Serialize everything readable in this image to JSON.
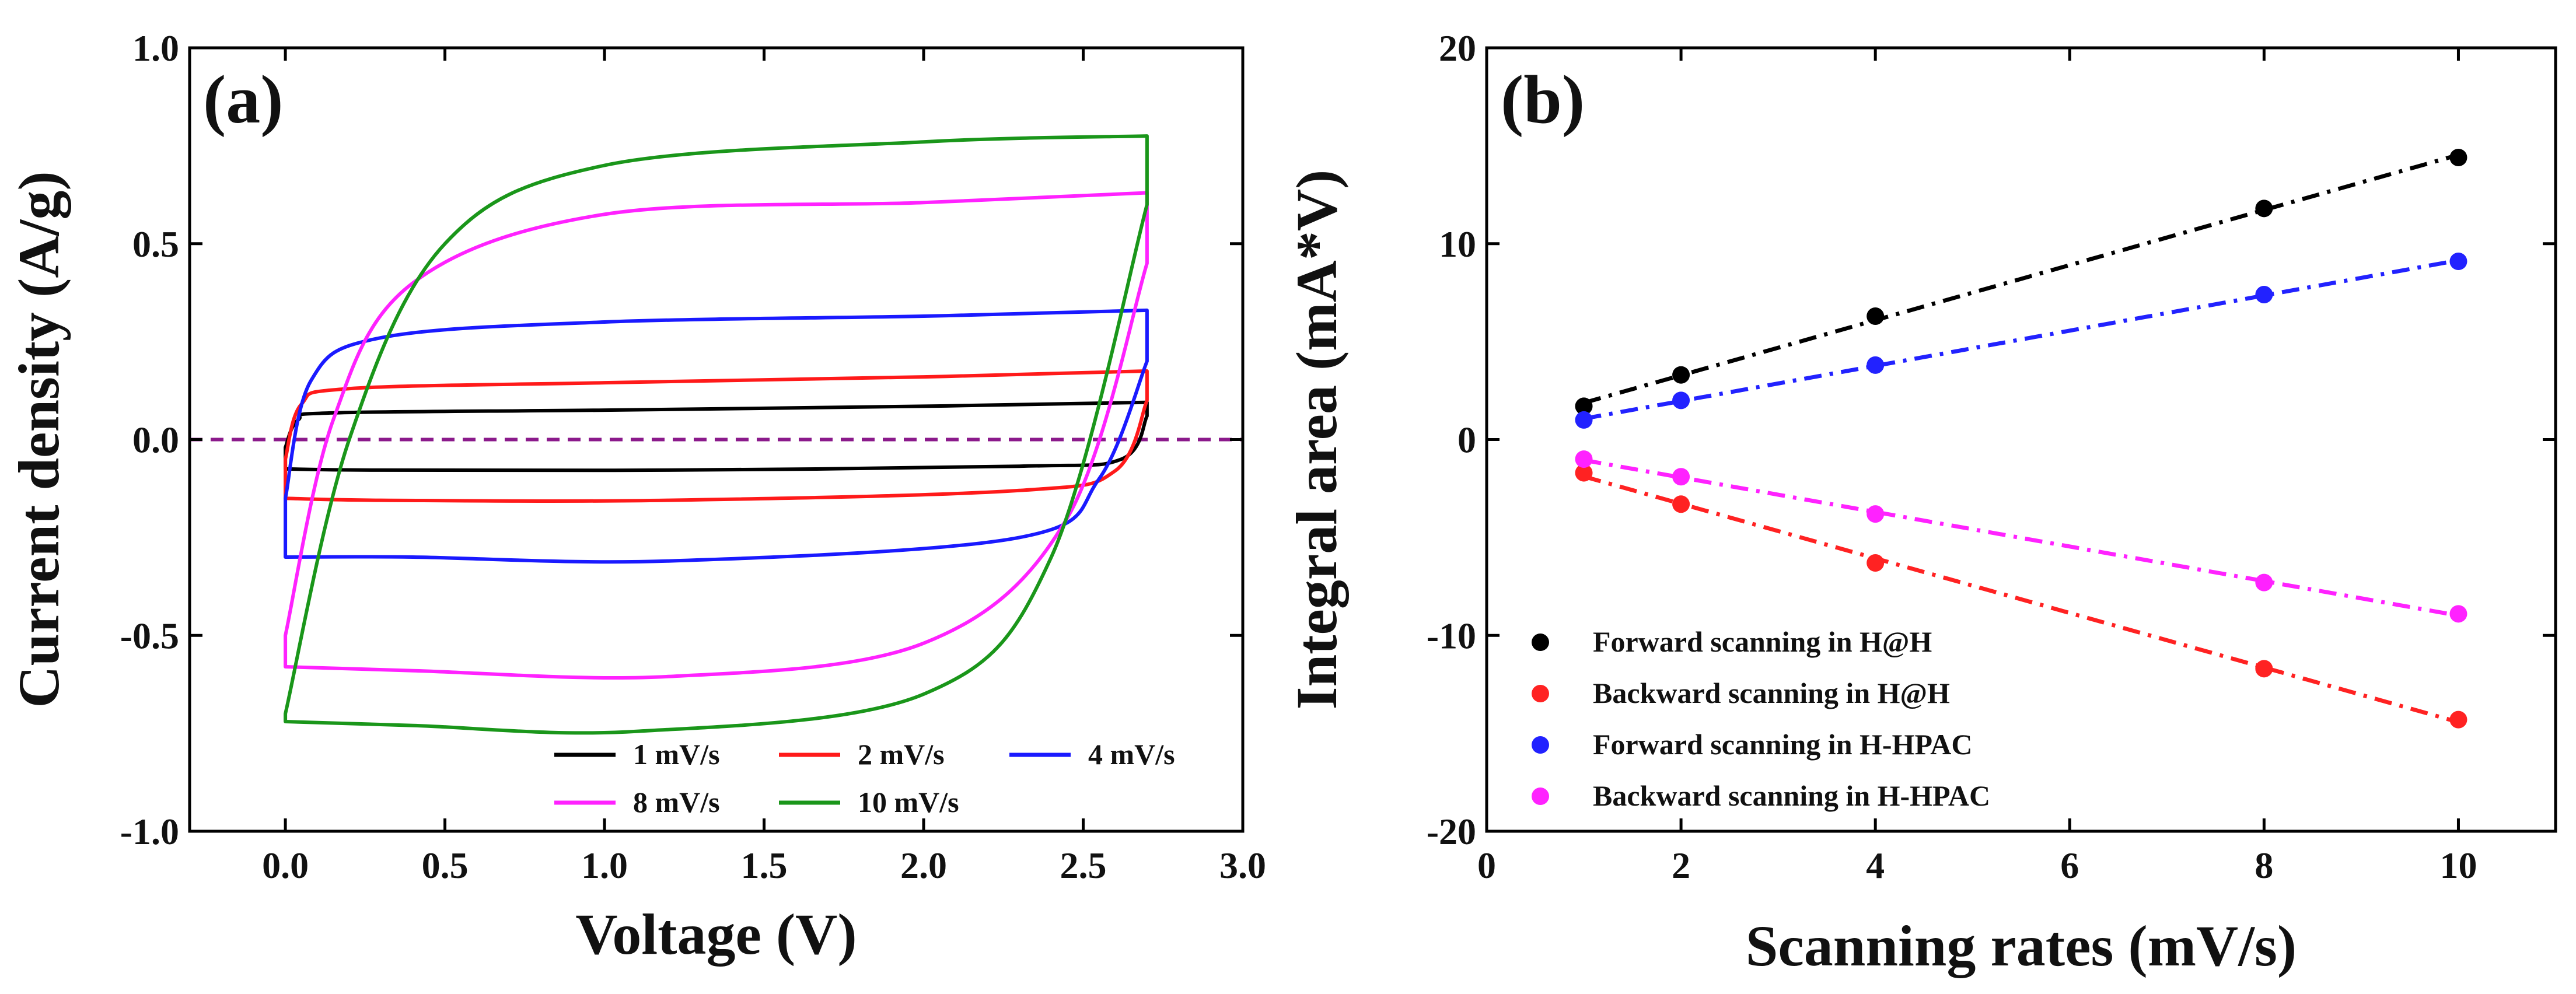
{
  "chart_data": [
    {
      "panel": "(a)",
      "type": "line",
      "xlabel": "Voltage (V)",
      "ylabel": "Current density (A/g)",
      "xlim": [
        -0.3,
        3.0
      ],
      "ylim": [
        -1.0,
        1.0
      ],
      "xticks": [
        "0.0",
        "0.5",
        "1.0",
        "1.5",
        "2.0",
        "2.5",
        "3.0"
      ],
      "yticks": [
        "1.0",
        "0.5",
        "0.0",
        "-0.5",
        "-1.0"
      ],
      "reference_line": {
        "y": 0.0,
        "style": "dashed",
        "color": "#8b1a8b"
      },
      "legend_position": "bottom-right",
      "series": [
        {
          "name": "1 mV/s",
          "color": "#000000",
          "v_max": 2.7,
          "upper": [
            [
              0.0,
              -0.02
            ],
            [
              0.04,
              0.05
            ],
            [
              0.15,
              0.068
            ],
            [
              1.0,
              0.075
            ],
            [
              2.0,
              0.085
            ],
            [
              2.7,
              0.095
            ]
          ],
          "lower": [
            [
              2.7,
              0.06
            ],
            [
              2.62,
              -0.05
            ],
            [
              2.3,
              -0.068
            ],
            [
              1.2,
              -0.078
            ],
            [
              0.3,
              -0.078
            ],
            [
              0.0,
              -0.075
            ]
          ]
        },
        {
          "name": "2 mV/s",
          "color": "#ff1a1a",
          "v_max": 2.7,
          "upper": [
            [
              0.0,
              -0.05
            ],
            [
              0.05,
              0.09
            ],
            [
              0.2,
              0.13
            ],
            [
              1.0,
              0.145
            ],
            [
              2.0,
              0.16
            ],
            [
              2.7,
              0.175
            ]
          ],
          "lower": [
            [
              2.7,
              0.1
            ],
            [
              2.6,
              -0.08
            ],
            [
              2.3,
              -0.13
            ],
            [
              1.2,
              -0.155
            ],
            [
              0.3,
              -0.155
            ],
            [
              0.0,
              -0.15
            ]
          ]
        },
        {
          "name": "4 mV/s",
          "color": "#1a1aff",
          "v_max": 2.7,
          "upper": [
            [
              0.0,
              -0.15
            ],
            [
              0.08,
              0.15
            ],
            [
              0.3,
              0.26
            ],
            [
              1.0,
              0.3
            ],
            [
              2.0,
              0.315
            ],
            [
              2.7,
              0.33
            ]
          ],
          "lower": [
            [
              2.7,
              0.2
            ],
            [
              2.55,
              -0.1
            ],
            [
              2.3,
              -0.25
            ],
            [
              1.2,
              -0.31
            ],
            [
              0.4,
              -0.3
            ],
            [
              0.0,
              -0.3
            ]
          ]
        },
        {
          "name": "8 mV/s",
          "color": "#ff22ff",
          "v_max": 2.7,
          "upper": [
            [
              0.0,
              -0.5
            ],
            [
              0.15,
              0.05
            ],
            [
              0.4,
              0.4
            ],
            [
              1.0,
              0.575
            ],
            [
              2.0,
              0.605
            ],
            [
              2.7,
              0.63
            ]
          ],
          "lower": [
            [
              2.7,
              0.45
            ],
            [
              2.45,
              -0.2
            ],
            [
              2.0,
              -0.52
            ],
            [
              1.2,
              -0.605
            ],
            [
              0.4,
              -0.59
            ],
            [
              0.0,
              -0.58
            ]
          ]
        },
        {
          "name": "10 mV/s",
          "color": "#1a961a",
          "v_max": 2.7,
          "upper": [
            [
              0.0,
              -0.7
            ],
            [
              0.2,
              0.0
            ],
            [
              0.5,
              0.5
            ],
            [
              1.0,
              0.7
            ],
            [
              2.0,
              0.76
            ],
            [
              2.7,
              0.775
            ]
          ],
          "lower": [
            [
              2.7,
              0.6
            ],
            [
              2.4,
              -0.3
            ],
            [
              2.0,
              -0.65
            ],
            [
              1.1,
              -0.745
            ],
            [
              0.4,
              -0.73
            ],
            [
              0.0,
              -0.72
            ]
          ]
        }
      ]
    },
    {
      "panel": "(b)",
      "type": "scatter",
      "xlabel": "Scanning rates (mV/s)",
      "ylabel": "Integral area (mA*V)",
      "xlim": [
        0,
        11
      ],
      "ylim": [
        -20,
        20
      ],
      "xticks": [
        "0",
        "2",
        "4",
        "6",
        "8",
        "10"
      ],
      "yticks": [
        "20",
        "10",
        "0",
        "-10",
        "-20"
      ],
      "legend_position": "bottom-left",
      "x": [
        1,
        2,
        4,
        8,
        10
      ],
      "series": [
        {
          "name": "Forward scanning in H@H",
          "color": "#000000",
          "values": [
            1.7,
            3.3,
            6.3,
            11.8,
            14.4
          ]
        },
        {
          "name": "Backward scanning in H@H",
          "color": "#ff2222",
          "values": [
            -1.7,
            -3.3,
            -6.3,
            -11.7,
            -14.3
          ]
        },
        {
          "name": "Forward scanning in H-HPAC",
          "color": "#2222ff",
          "values": [
            1.0,
            2.0,
            3.8,
            7.4,
            9.1
          ]
        },
        {
          "name": "Backward scanning in H-HPAC",
          "color": "#ff22ff",
          "values": [
            -1.0,
            -1.9,
            -3.8,
            -7.3,
            -8.9
          ]
        }
      ]
    }
  ]
}
